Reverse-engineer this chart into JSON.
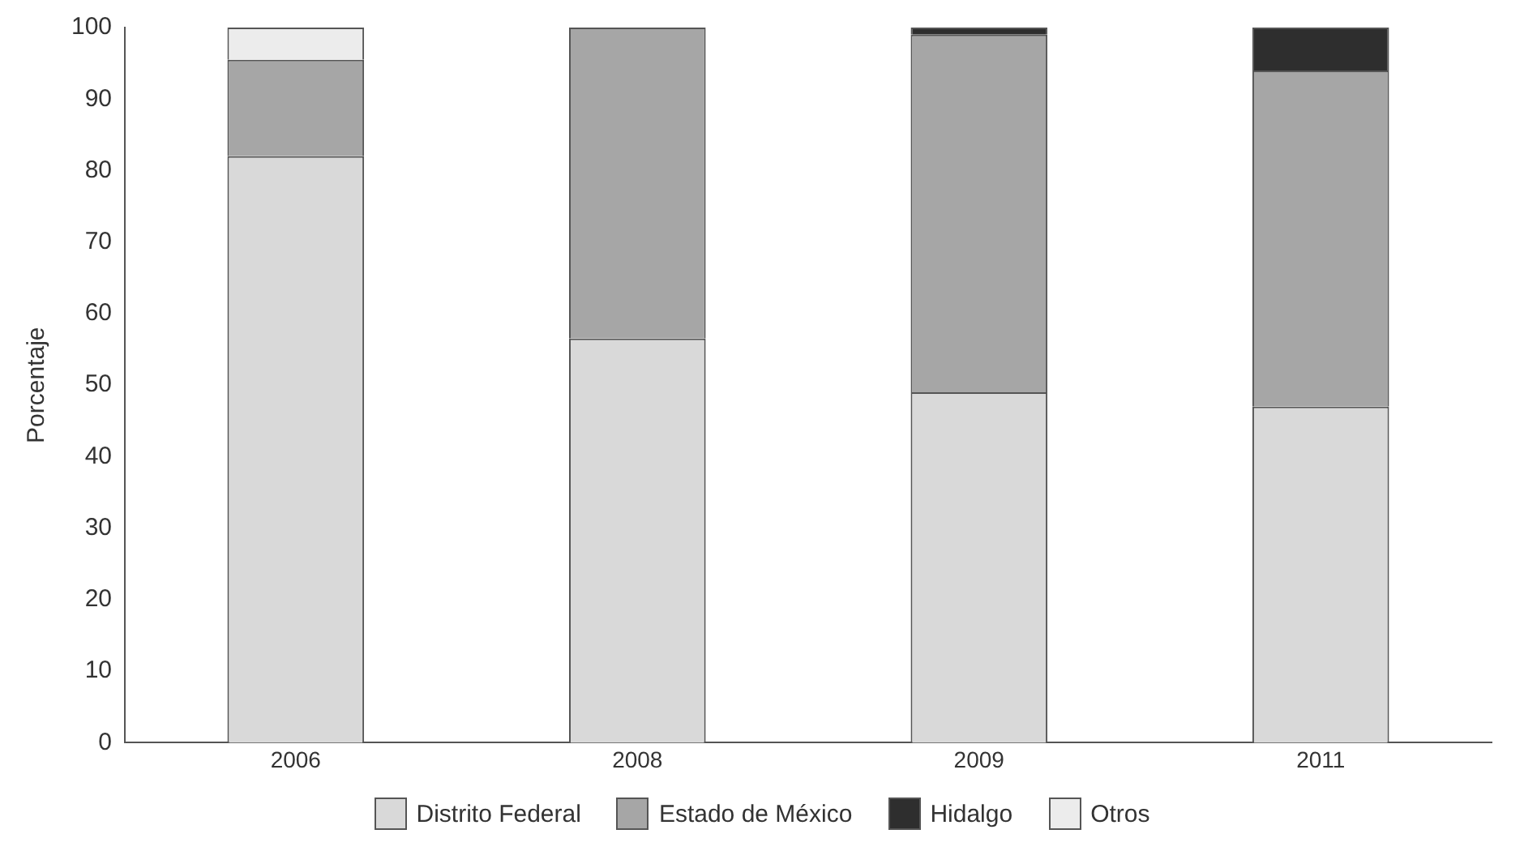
{
  "chart_data": {
    "type": "bar",
    "stacked": true,
    "ylabel": "Porcentaje",
    "categories": [
      "2006",
      "2008",
      "2009",
      "2011"
    ],
    "series": [
      {
        "name": "Distrito Federal",
        "color": "#d9d9d9",
        "values": [
          82,
          56.5,
          49,
          47
        ]
      },
      {
        "name": "Estado de México",
        "color": "#a6a6a6",
        "values": [
          13.5,
          43.5,
          50,
          47
        ]
      },
      {
        "name": "Hidalgo",
        "color": "#2e2e2e",
        "values": [
          0,
          0,
          1,
          6
        ]
      },
      {
        "name": "Otros",
        "color": "#ececec",
        "values": [
          4.5,
          0,
          0,
          0
        ]
      }
    ],
    "ylim": [
      0,
      100
    ],
    "yticks": [
      0,
      10,
      20,
      30,
      40,
      50,
      60,
      70,
      80,
      90,
      100
    ],
    "grid": false,
    "legend": "bottom"
  }
}
